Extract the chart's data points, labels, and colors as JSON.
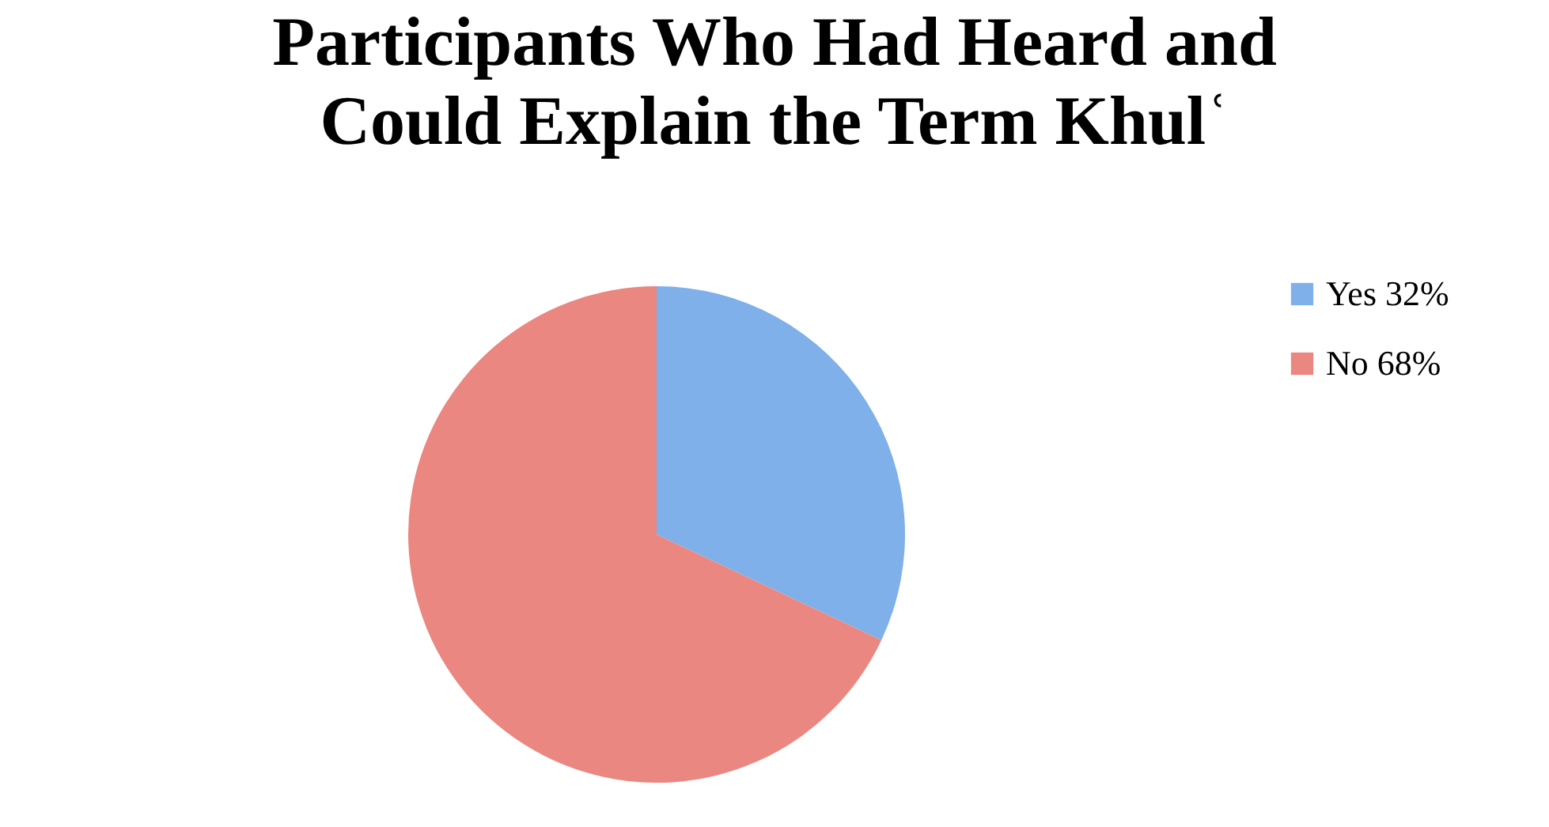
{
  "chart_data": {
    "type": "pie",
    "title": "Participants Who Had Heard and Could Explain the Term Khulʿ",
    "categories": [
      "Yes 32%",
      "No 68%"
    ],
    "values": [
      32,
      68
    ],
    "colors": [
      "#7fb0ea",
      "#ea8780"
    ],
    "legend": "right"
  }
}
